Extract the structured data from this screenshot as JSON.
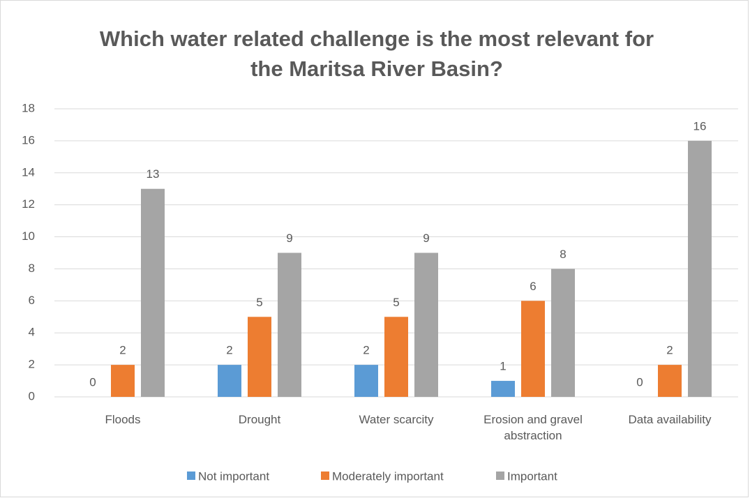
{
  "chart_data": {
    "type": "bar",
    "title": [
      "Which water related challenge is the most relevant for",
      "the Maritsa River Basin?"
    ],
    "categories": [
      "Floods",
      "Drought",
      "Water scarcity",
      "Erosion and gravel abstraction",
      "Data availability"
    ],
    "series": [
      {
        "name": "Not important",
        "color": "#5b9bd5",
        "values": [
          0,
          2,
          2,
          1,
          0
        ]
      },
      {
        "name": "Moderately important",
        "color": "#ed7d31",
        "values": [
          2,
          5,
          5,
          6,
          2
        ]
      },
      {
        "name": "Important",
        "color": "#a5a5a5",
        "values": [
          13,
          9,
          9,
          8,
          16
        ]
      }
    ],
    "ylim": [
      0,
      18
    ],
    "yticks": [
      0,
      2,
      4,
      6,
      8,
      10,
      12,
      14,
      16,
      18
    ],
    "grid": true,
    "legend": "bottom"
  }
}
